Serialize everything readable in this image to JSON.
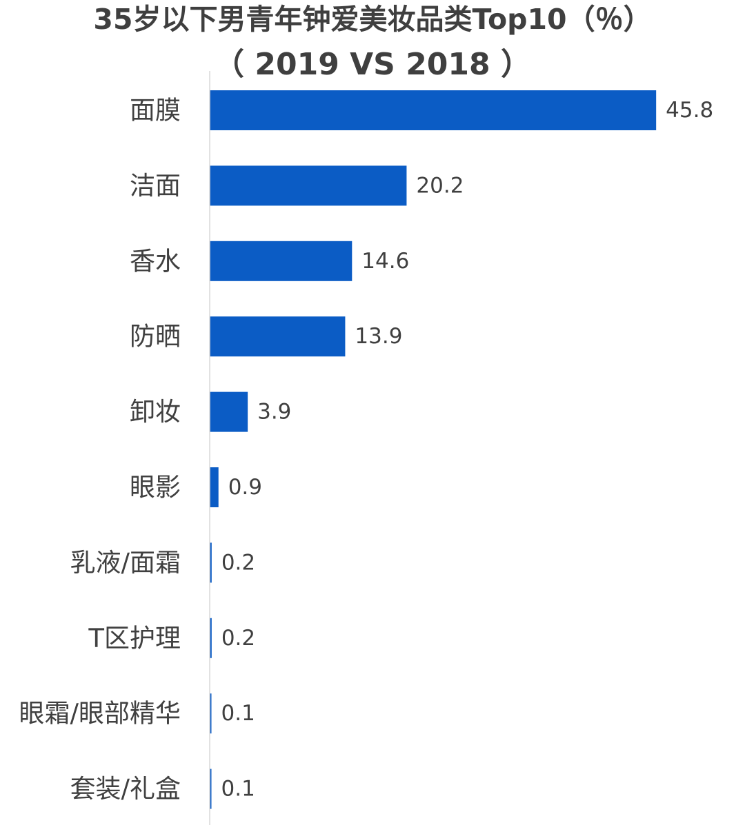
{
  "chart_data": {
    "type": "bar",
    "orientation": "horizontal",
    "title": "35岁以下男青年钟爱美妆品类Top10（％）",
    "subtitle": "（ 2019 VS 2018 ）",
    "categories": [
      "面膜",
      "洁面",
      "香水",
      "防晒",
      "卸妆",
      "眼影",
      "乳液/面霜",
      "T区护理",
      "眼霜/眼部精华",
      "套装/礼盒"
    ],
    "values": [
      45.8,
      20.2,
      14.6,
      13.9,
      3.9,
      0.9,
      0.2,
      0.2,
      0.1,
      0.1
    ],
    "value_labels": [
      "45.8",
      "20.2",
      "14.6",
      "13.9",
      "3.9",
      "0.9",
      "0.2",
      "0.2",
      "0.1",
      "0.1"
    ],
    "xlim": [
      0,
      50
    ],
    "xlabel": "",
    "ylabel": "",
    "grid": false,
    "legend": "none",
    "bar_color": "#0b5cc5",
    "axis_color": "#d9d9d9",
    "label_color": "#404040"
  }
}
